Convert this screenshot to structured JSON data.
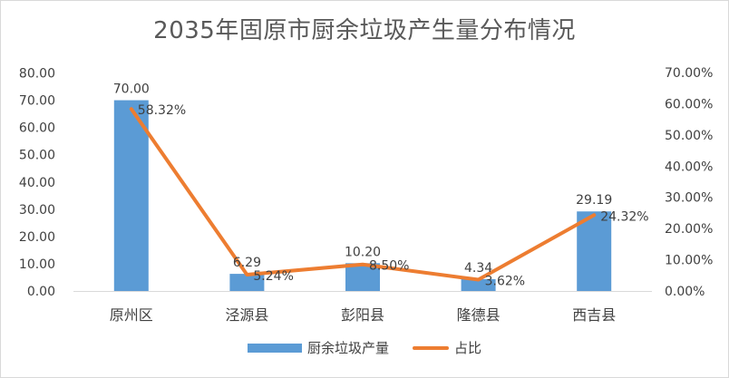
{
  "chart_data": {
    "type": "bar",
    "title": "2035年固原市厨余垃圾产生量分布情况",
    "categories": [
      "原州区",
      "泾源县",
      "彭阳县",
      "隆德县",
      "西吉县"
    ],
    "series": [
      {
        "name": "厨余垃圾产量",
        "type": "bar",
        "axis": "left",
        "values": [
          70.0,
          6.29,
          10.2,
          4.34,
          29.19
        ],
        "labels": [
          "70.00",
          "6.29",
          "10.20",
          "4.34",
          "29.19"
        ],
        "color": "#5b9bd5"
      },
      {
        "name": "占比",
        "type": "line",
        "axis": "right",
        "values": [
          58.32,
          5.24,
          8.5,
          3.62,
          24.32
        ],
        "labels": [
          "58.32%",
          "5.24%",
          "8.50%",
          "3.62%",
          "24.32%"
        ],
        "color": "#ed7d31"
      }
    ],
    "y_left": {
      "ylim": [
        0,
        80
      ],
      "ticks": [
        "0.00",
        "10.00",
        "20.00",
        "30.00",
        "40.00",
        "50.00",
        "60.00",
        "70.00",
        "80.00"
      ]
    },
    "y_right": {
      "ylim": [
        0,
        70
      ],
      "ticks": [
        "0.00%",
        "10.00%",
        "20.00%",
        "30.00%",
        "40.00%",
        "50.00%",
        "60.00%",
        "70.00%"
      ]
    },
    "grid": false,
    "legend": "bottom-center"
  }
}
